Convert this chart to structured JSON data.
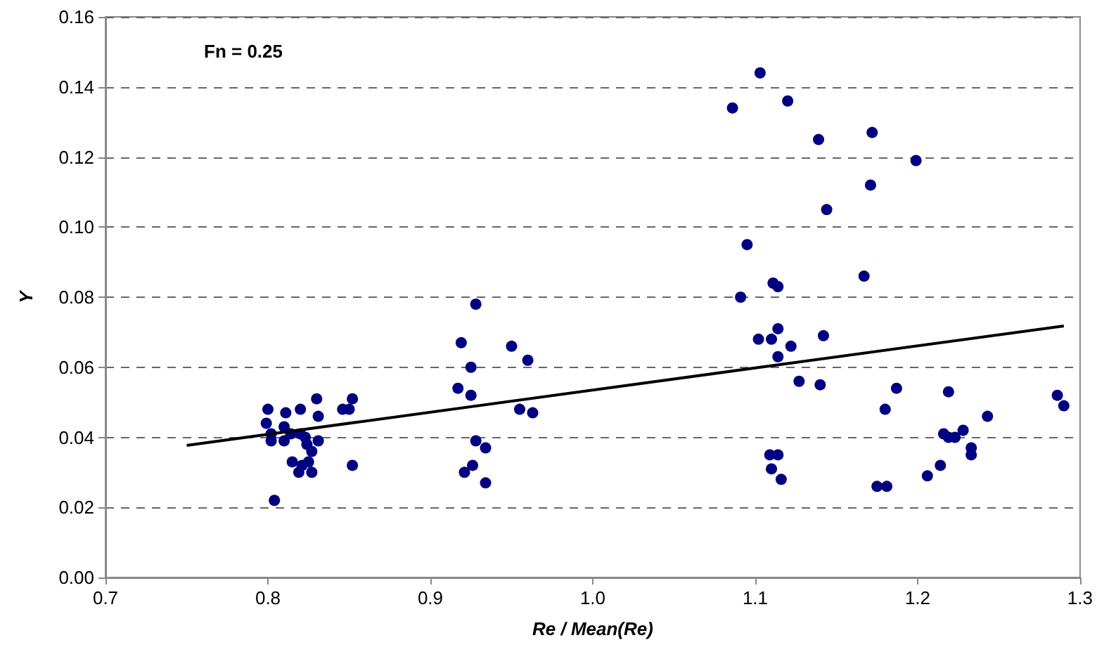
{
  "chart_data": {
    "type": "scatter",
    "xlabel": "Re / Mean(Re)",
    "ylabel": "Y",
    "annotations": [
      "Fn = 0.25"
    ],
    "xlim": [
      0.7,
      1.3
    ],
    "xticks": [
      {
        "value": 0.7,
        "label": "0.7"
      },
      {
        "value": 0.8,
        "label": "0.8"
      },
      {
        "value": 0.9,
        "label": "0.9"
      },
      {
        "value": 1.0,
        "label": "1.0"
      },
      {
        "value": 1.1,
        "label": "1.1"
      },
      {
        "value": 1.2,
        "label": "1.2"
      },
      {
        "value": 1.3,
        "label": "1.3"
      }
    ],
    "ylim": [
      0,
      0.16
    ],
    "yticks": [
      {
        "value": 0,
        "label": "0.00"
      },
      {
        "value": 0.02,
        "label": "0.02"
      },
      {
        "value": 0.04,
        "label": "0.04"
      },
      {
        "value": 0.06,
        "label": "0.06"
      },
      {
        "value": 0.08,
        "label": "0.08"
      },
      {
        "value": 0.1,
        "label": "0.10"
      },
      {
        "value": 0.12,
        "label": "0.12"
      },
      {
        "value": 0.14,
        "label": "0.14"
      },
      {
        "value": 0.16,
        "label": "0.16"
      }
    ],
    "grid": "y",
    "marker": "circle",
    "series": [
      {
        "type": "scatter",
        "color": "#000080",
        "x": [
          0.8,
          0.799,
          0.802,
          0.802,
          0.804,
          0.811,
          0.81,
          0.81,
          0.814,
          0.815,
          0.819,
          0.82,
          0.82,
          0.821,
          0.823,
          0.824,
          0.825,
          0.827,
          0.827,
          0.83,
          0.831,
          0.831,
          0.846,
          0.85,
          0.852,
          0.852,
          0.917,
          0.919,
          0.925,
          0.925,
          0.928,
          0.921,
          0.926,
          0.928,
          0.934,
          0.934,
          0.95,
          0.955,
          0.96,
          0.963,
          1.086,
          1.103,
          1.12,
          1.139,
          1.172,
          1.171,
          1.199,
          1.144,
          1.095,
          1.091,
          1.167,
          1.111,
          1.114,
          1.102,
          1.11,
          1.114,
          1.122,
          1.114,
          1.142,
          1.127,
          1.14,
          1.187,
          1.18,
          1.219,
          1.216,
          1.219,
          1.223,
          1.228,
          1.233,
          1.233,
          1.243,
          1.214,
          1.206,
          1.175,
          1.181,
          1.109,
          1.114,
          1.11,
          1.116,
          1.286,
          1.29
        ],
        "values": [
          0.048,
          0.044,
          0.041,
          0.039,
          0.022,
          0.047,
          0.043,
          0.039,
          0.041,
          0.033,
          0.03,
          0.048,
          0.041,
          0.032,
          0.04,
          0.038,
          0.033,
          0.036,
          0.03,
          0.051,
          0.046,
          0.039,
          0.048,
          0.048,
          0.051,
          0.032,
          0.054,
          0.067,
          0.052,
          0.06,
          0.078,
          0.03,
          0.032,
          0.039,
          0.037,
          0.027,
          0.066,
          0.048,
          0.062,
          0.047,
          0.134,
          0.144,
          0.136,
          0.125,
          0.127,
          0.112,
          0.119,
          0.105,
          0.095,
          0.08,
          0.086,
          0.084,
          0.083,
          0.068,
          0.068,
          0.071,
          0.066,
          0.063,
          0.069,
          0.056,
          0.055,
          0.054,
          0.048,
          0.053,
          0.041,
          0.04,
          0.04,
          0.042,
          0.037,
          0.035,
          0.046,
          0.032,
          0.029,
          0.026,
          0.026,
          0.035,
          0.035,
          0.031,
          0.028,
          0.052,
          0.049
        ]
      },
      {
        "type": "line",
        "color": "#000000",
        "marker": "none",
        "line_style": "solid",
        "x": [
          0.75,
          1.29
        ],
        "values": [
          0.0377,
          0.0718
        ]
      }
    ]
  }
}
